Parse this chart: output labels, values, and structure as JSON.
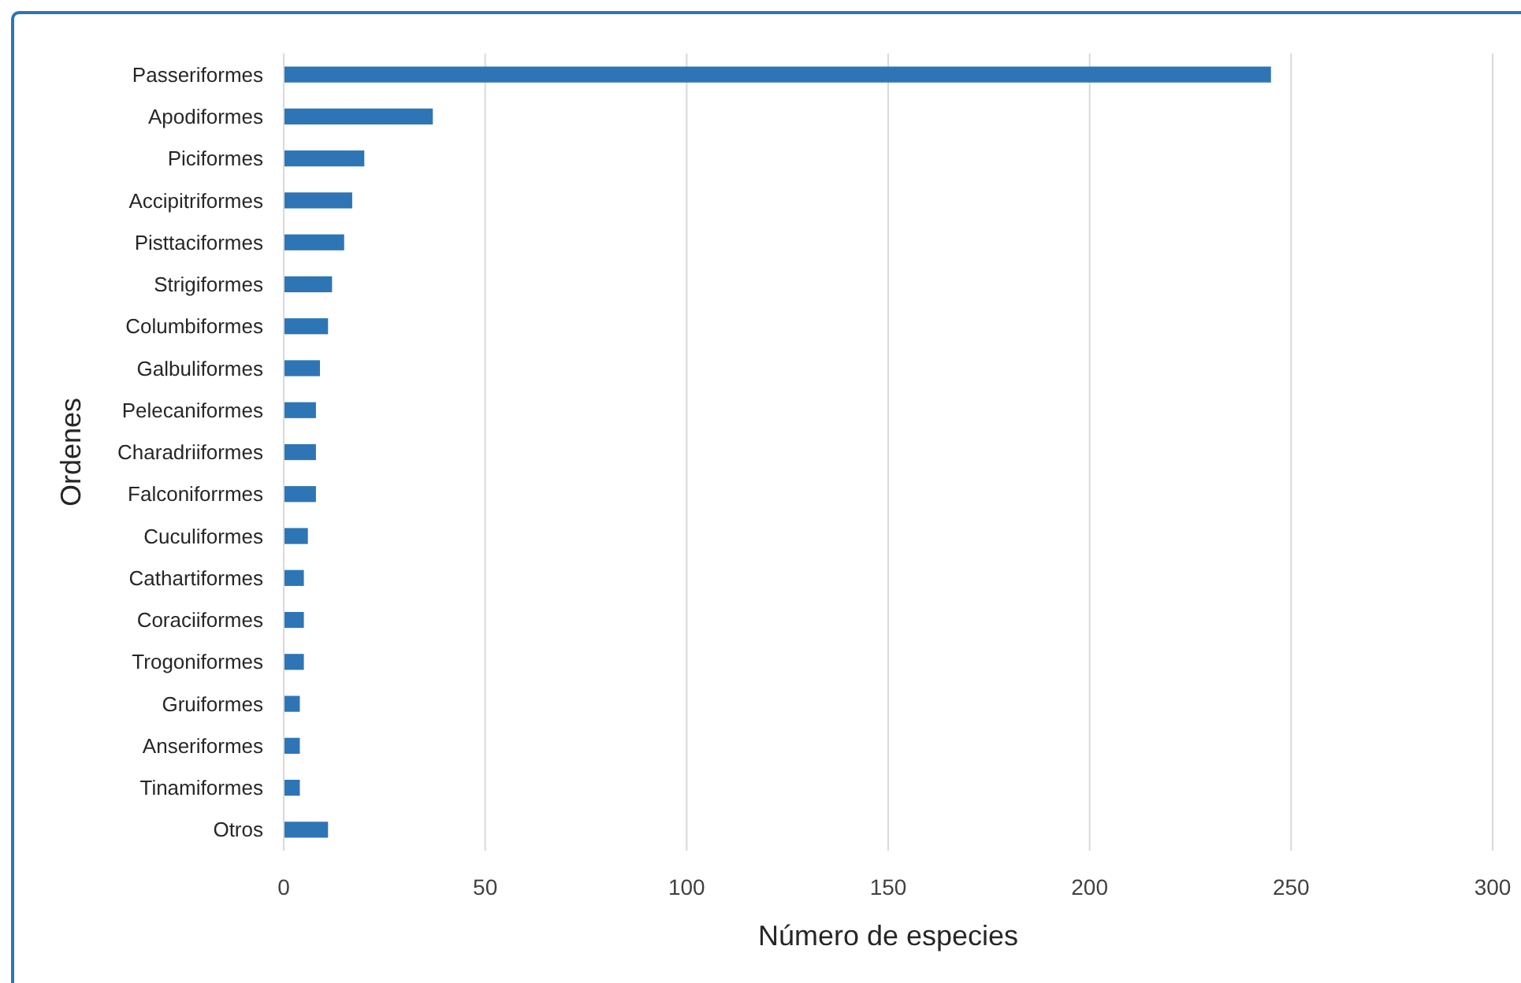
{
  "chart_data": {
    "type": "bar",
    "orientation": "horizontal",
    "xlabel": "Número de especies",
    "ylabel": "Ordenes",
    "categories": [
      "Passeriformes",
      "Apodiformes",
      "Piciformes",
      "Accipitriformes",
      "Pisttaciformes",
      "Strigiformes",
      "Columbiformes",
      "Galbuliformes",
      "Pelecaniformes",
      "Charadriiformes",
      "Falconiforrmes",
      "Cuculiformes",
      "Cathartiformes",
      "Coraciiformes",
      "Trogoniformes",
      "Gruiformes",
      "Anseriformes",
      "Tinamiformes",
      "Otros"
    ],
    "values": [
      245,
      37,
      20,
      17,
      15,
      12,
      11,
      9,
      8,
      8,
      8,
      6,
      5,
      5,
      5,
      4,
      4,
      4,
      11
    ],
    "color": "#2e75b6",
    "xlim": [
      0,
      300
    ],
    "xticks": [
      0,
      50,
      100,
      150,
      200,
      250,
      300
    ],
    "grid": "x"
  }
}
